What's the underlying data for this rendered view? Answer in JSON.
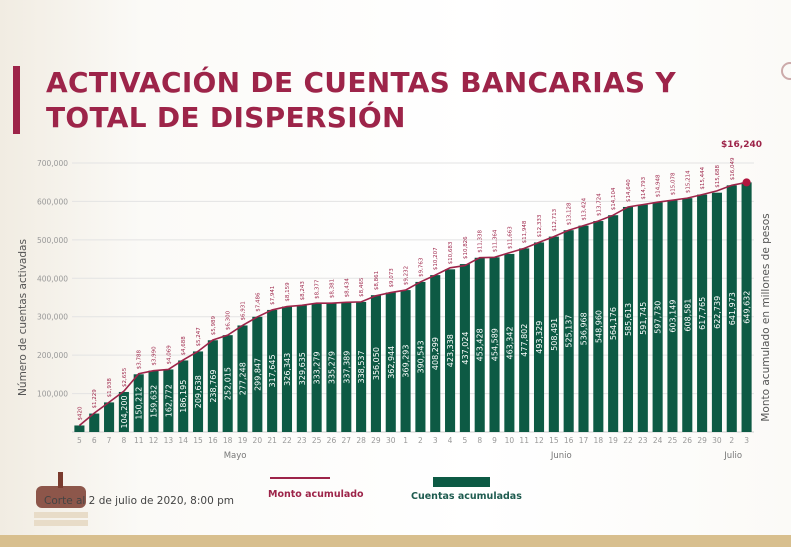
{
  "title": {
    "line1": "ACTIVACIÓN DE CUENTAS BANCARIAS Y",
    "line2": "TOTAL DE DISPERSIÓN"
  },
  "footnote": "Corte al 2 de julio de 2020, 8:00 pm",
  "legend": {
    "line": "Monto acumulado",
    "bar": "Cuentas acumuladas"
  },
  "colors": {
    "bar": "#0d5a44",
    "line": "#9d2449",
    "title": "#9d2449",
    "band": "#d8bf8e"
  },
  "chart_data": {
    "type": "bar",
    "title": "ACTIVACIÓN DE CUENTAS BANCARIAS Y TOTAL DE DISPERSIÓN",
    "ylabel": "Número de cuentas activadas",
    "y2label": "Monto acumulado en millones de pesos",
    "ylim": [
      0,
      700000
    ],
    "y2lim": [
      0,
      17500
    ],
    "yticks": [
      "100,000",
      "200,000",
      "300,000",
      "400,000",
      "500,000",
      "600,000",
      "700,000"
    ],
    "grid": true,
    "legend_position": "bottom",
    "months": [
      {
        "label": "Mayo",
        "span": [
          0,
          21
        ]
      },
      {
        "label": "Junio",
        "span": [
          22,
          43
        ]
      },
      {
        "label": "Julio",
        "span": [
          44,
          45
        ]
      }
    ],
    "categories": [
      "5",
      "6",
      "7",
      "8",
      "11",
      "12",
      "13",
      "14",
      "15",
      "16",
      "18",
      "19",
      "20",
      "21",
      "22",
      "23",
      "25",
      "26",
      "27",
      "28",
      "29",
      "30",
      "1",
      "2",
      "3",
      "4",
      "5",
      "8",
      "9",
      "10",
      "11",
      "12",
      "15",
      "16",
      "17",
      "18",
      "19",
      "22",
      "23",
      "24",
      "25",
      "26",
      "29",
      "30",
      "2",
      "3"
    ],
    "series": [
      {
        "name": "Cuentas acumuladas",
        "type": "bar",
        "values": [
          17000,
          48000,
          77000,
          104200,
          150212,
          159632,
          162772,
          186195,
          209638,
          238769,
          252015,
          277248,
          299847,
          317645,
          326343,
          329635,
          333279,
          335279,
          337389,
          338537,
          356050,
          362944,
          369293,
          390543,
          408299,
          423338,
          437024,
          453428,
          454589,
          463342,
          477802,
          493329,
          508491,
          525137,
          536968,
          548960,
          564176,
          585613,
          591745,
          597730,
          603149,
          608581,
          617765,
          622739,
          641973,
          649632
        ],
        "labels": [
          "",
          "",
          "",
          "104,200",
          "150,212",
          "159,632",
          "162,772",
          "186,195",
          "209,638",
          "238,769",
          "252,015",
          "277,248",
          "299,847",
          "317,645",
          "326,343",
          "329,635",
          "333,279",
          "335,279",
          "337,389",
          "338,537",
          "356,050",
          "362,944",
          "369,293",
          "390,543",
          "408,299",
          "423,338",
          "437,024",
          "453,428",
          "454,589",
          "463,342",
          "477,802",
          "493,329",
          "508,491",
          "525,137",
          "536,968",
          "548,960",
          "564,176",
          "585,613",
          "591,745",
          "597,730",
          "603,149",
          "608,581",
          "617,765",
          "622,739",
          "641,973",
          "649,632"
        ]
      },
      {
        "name": "Monto acumulado",
        "type": "line",
        "values": [
          420,
          1229,
          1938,
          2655,
          3788,
          3990,
          4069,
          4688,
          5247,
          5989,
          6300,
          6931,
          7486,
          7941,
          8159,
          8243,
          8377,
          8381,
          8434,
          8465,
          8861,
          9073,
          9232,
          9763,
          10207,
          10683,
          10826,
          11338,
          11364,
          11663,
          11948,
          12333,
          12713,
          13128,
          13424,
          13724,
          14104,
          14640,
          14793,
          14948,
          15078,
          15214,
          15444,
          15688,
          16049,
          16240
        ],
        "labels": [
          "$420",
          "$1,229",
          "$1,938",
          "$2,655",
          "$3,788",
          "$3,990",
          "$4,069",
          "$4,688",
          "$5,247",
          "$5,989",
          "$6,300",
          "$6,931",
          "$7,486",
          "$7,941",
          "$8,159",
          "$8,243",
          "$8,377",
          "$8,381",
          "$8,434",
          "$8,465",
          "$8,861",
          "$9,073",
          "$9,232",
          "$9,763",
          "$10,207",
          "$10,683",
          "$10,826",
          "$11,338",
          "$11,364",
          "$11,663",
          "$11,948",
          "$12,333",
          "$12,713",
          "$13,128",
          "$13,424",
          "$13,724",
          "$14,104",
          "$14,640",
          "$14,793",
          "$14,948",
          "$15,078",
          "$15,214",
          "$15,444",
          "$15,688",
          "$16,049",
          "$16,240"
        ]
      }
    ]
  }
}
